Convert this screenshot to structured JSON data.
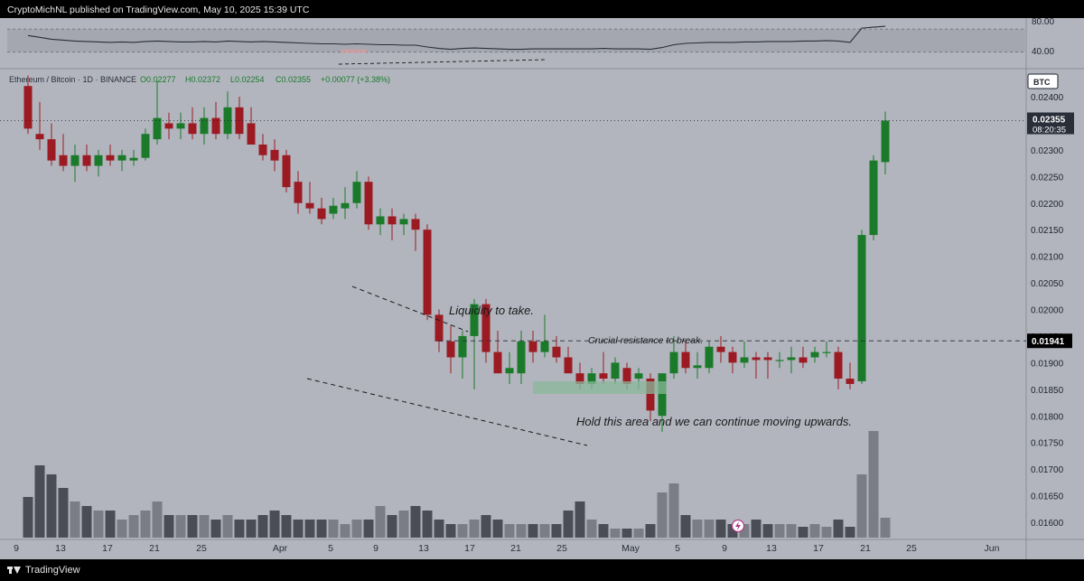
{
  "header": {
    "publisher_line": "CryptoMichNL published on TradingView.com, May 10, 2025 15:39 UTC"
  },
  "footer": {
    "brand": "TradingView"
  },
  "colors": {
    "up": "#1a7a2a",
    "down": "#9c1a22",
    "vol_up": "#7a7d85",
    "vol_down": "#4a4d55",
    "rsi_line": "#2a2e39",
    "annotation": "#1a1a1a"
  },
  "chart_data": {
    "type": "candlestick",
    "symbol_line": {
      "symbol": "Ethereum / Bitcoin · 1D · BINANCE",
      "open": "O0.02277",
      "high": "H0.02372",
      "low": "L0.02254",
      "close": "C0.02355",
      "change": "+0.00077 (+3.38%)"
    },
    "currency_badge": "BTC",
    "price_axis": {
      "ticks": [
        "0.02400",
        "0.02350",
        "0.02300",
        "0.02250",
        "0.02200",
        "0.02150",
        "0.02100",
        "0.02050",
        "0.02000",
        "0.01950",
        "0.01900",
        "0.01850",
        "0.01800",
        "0.01750",
        "0.01700",
        "0.01650",
        "0.01600"
      ],
      "range": [
        0.01575,
        0.02455
      ]
    },
    "time_axis": {
      "labels": [
        "9",
        "13",
        "17",
        "21",
        "25",
        "Apr",
        "5",
        "9",
        "13",
        "17",
        "21",
        "25",
        "May",
        "5",
        "9",
        "13",
        "17",
        "21",
        "25",
        "Jun"
      ]
    },
    "last_price": {
      "value": "0.02355",
      "countdown": "08:20:35"
    },
    "level_label": {
      "value": "0.01941"
    },
    "rsi_pane": {
      "ticks": [
        "80.00",
        "40.00"
      ],
      "band": [
        30,
        70
      ]
    },
    "annotations": {
      "liquidity": "Liquidity to take.",
      "resistance": "Crucial resistance to break.",
      "hold": "Hold this area and we can continue moving upwards."
    },
    "candles": [
      {
        "o": 0.0242,
        "h": 0.0244,
        "l": 0.0233,
        "c": 0.0234
      },
      {
        "o": 0.0233,
        "h": 0.0239,
        "l": 0.023,
        "c": 0.0232
      },
      {
        "o": 0.0232,
        "h": 0.0235,
        "l": 0.0227,
        "c": 0.0228
      },
      {
        "o": 0.0229,
        "h": 0.0233,
        "l": 0.0226,
        "c": 0.0227
      },
      {
        "o": 0.0227,
        "h": 0.0231,
        "l": 0.0224,
        "c": 0.0229
      },
      {
        "o": 0.0229,
        "h": 0.0231,
        "l": 0.0226,
        "c": 0.0227
      },
      {
        "o": 0.0227,
        "h": 0.023,
        "l": 0.0225,
        "c": 0.0229
      },
      {
        "o": 0.0229,
        "h": 0.0231,
        "l": 0.0227,
        "c": 0.0228
      },
      {
        "o": 0.0228,
        "h": 0.023,
        "l": 0.0226,
        "c": 0.0229
      },
      {
        "o": 0.0228,
        "h": 0.023,
        "l": 0.0227,
        "c": 0.02285
      },
      {
        "o": 0.02285,
        "h": 0.0234,
        "l": 0.0228,
        "c": 0.0233
      },
      {
        "o": 0.0232,
        "h": 0.0243,
        "l": 0.0231,
        "c": 0.0236
      },
      {
        "o": 0.0235,
        "h": 0.0237,
        "l": 0.0232,
        "c": 0.0234
      },
      {
        "o": 0.0234,
        "h": 0.0237,
        "l": 0.0232,
        "c": 0.0235
      },
      {
        "o": 0.0235,
        "h": 0.0238,
        "l": 0.0232,
        "c": 0.0233
      },
      {
        "o": 0.0233,
        "h": 0.0238,
        "l": 0.0231,
        "c": 0.0236
      },
      {
        "o": 0.0236,
        "h": 0.0239,
        "l": 0.0232,
        "c": 0.0233
      },
      {
        "o": 0.0233,
        "h": 0.0241,
        "l": 0.0232,
        "c": 0.0238
      },
      {
        "o": 0.0238,
        "h": 0.024,
        "l": 0.0232,
        "c": 0.0233
      },
      {
        "o": 0.0235,
        "h": 0.0238,
        "l": 0.0231,
        "c": 0.0231
      },
      {
        "o": 0.0231,
        "h": 0.0233,
        "l": 0.0228,
        "c": 0.0229
      },
      {
        "o": 0.023,
        "h": 0.0232,
        "l": 0.0226,
        "c": 0.0228
      },
      {
        "o": 0.0229,
        "h": 0.023,
        "l": 0.0222,
        "c": 0.0223
      },
      {
        "o": 0.0224,
        "h": 0.0226,
        "l": 0.0218,
        "c": 0.022
      },
      {
        "o": 0.022,
        "h": 0.0224,
        "l": 0.0218,
        "c": 0.0219
      },
      {
        "o": 0.0219,
        "h": 0.0221,
        "l": 0.0216,
        "c": 0.0217
      },
      {
        "o": 0.0218,
        "h": 0.0221,
        "l": 0.0217,
        "c": 0.02195
      },
      {
        "o": 0.0219,
        "h": 0.0223,
        "l": 0.0217,
        "c": 0.022
      },
      {
        "o": 0.022,
        "h": 0.0226,
        "l": 0.0219,
        "c": 0.0224
      },
      {
        "o": 0.0224,
        "h": 0.0225,
        "l": 0.0215,
        "c": 0.0216
      },
      {
        "o": 0.0216,
        "h": 0.0219,
        "l": 0.0214,
        "c": 0.02175
      },
      {
        "o": 0.02175,
        "h": 0.0219,
        "l": 0.0213,
        "c": 0.0216
      },
      {
        "o": 0.0216,
        "h": 0.0218,
        "l": 0.0214,
        "c": 0.0217
      },
      {
        "o": 0.0217,
        "h": 0.0218,
        "l": 0.0211,
        "c": 0.0215
      },
      {
        "o": 0.0215,
        "h": 0.0216,
        "l": 0.0198,
        "c": 0.0199
      },
      {
        "o": 0.0199,
        "h": 0.02,
        "l": 0.0192,
        "c": 0.0194
      },
      {
        "o": 0.0194,
        "h": 0.0197,
        "l": 0.0188,
        "c": 0.0191
      },
      {
        "o": 0.0191,
        "h": 0.0196,
        "l": 0.0187,
        "c": 0.0195
      },
      {
        "o": 0.0195,
        "h": 0.0202,
        "l": 0.0185,
        "c": 0.0201
      },
      {
        "o": 0.0201,
        "h": 0.0202,
        "l": 0.019,
        "c": 0.0192
      },
      {
        "o": 0.0192,
        "h": 0.0196,
        "l": 0.0188,
        "c": 0.0188
      },
      {
        "o": 0.0188,
        "h": 0.0192,
        "l": 0.0186,
        "c": 0.0189
      },
      {
        "o": 0.0188,
        "h": 0.0196,
        "l": 0.0186,
        "c": 0.0194
      },
      {
        "o": 0.0194,
        "h": 0.0196,
        "l": 0.019,
        "c": 0.0192
      },
      {
        "o": 0.0192,
        "h": 0.0199,
        "l": 0.0191,
        "c": 0.0194
      },
      {
        "o": 0.0193,
        "h": 0.0195,
        "l": 0.019,
        "c": 0.0191
      },
      {
        "o": 0.0191,
        "h": 0.0193,
        "l": 0.0188,
        "c": 0.0188
      },
      {
        "o": 0.0188,
        "h": 0.019,
        "l": 0.0185,
        "c": 0.0186
      },
      {
        "o": 0.0186,
        "h": 0.0189,
        "l": 0.0185,
        "c": 0.0188
      },
      {
        "o": 0.0188,
        "h": 0.0192,
        "l": 0.0186,
        "c": 0.0187
      },
      {
        "o": 0.0187,
        "h": 0.0191,
        "l": 0.0186,
        "c": 0.019
      },
      {
        "o": 0.0189,
        "h": 0.019,
        "l": 0.0185,
        "c": 0.0186
      },
      {
        "o": 0.0187,
        "h": 0.0189,
        "l": 0.0185,
        "c": 0.0188
      },
      {
        "o": 0.0187,
        "h": 0.0188,
        "l": 0.0179,
        "c": 0.0181
      },
      {
        "o": 0.018,
        "h": 0.0188,
        "l": 0.0177,
        "c": 0.0188
      },
      {
        "o": 0.0188,
        "h": 0.0195,
        "l": 0.0187,
        "c": 0.0192
      },
      {
        "o": 0.0192,
        "h": 0.0194,
        "l": 0.0188,
        "c": 0.0189
      },
      {
        "o": 0.0189,
        "h": 0.0192,
        "l": 0.0187,
        "c": 0.01895
      },
      {
        "o": 0.0189,
        "h": 0.0194,
        "l": 0.0188,
        "c": 0.0193
      },
      {
        "o": 0.0193,
        "h": 0.0195,
        "l": 0.019,
        "c": 0.0192
      },
      {
        "o": 0.0192,
        "h": 0.0193,
        "l": 0.0188,
        "c": 0.019
      },
      {
        "o": 0.019,
        "h": 0.0194,
        "l": 0.0189,
        "c": 0.0191
      },
      {
        "o": 0.0191,
        "h": 0.0192,
        "l": 0.0187,
        "c": 0.01905
      },
      {
        "o": 0.0191,
        "h": 0.0192,
        "l": 0.0187,
        "c": 0.01905
      },
      {
        "o": 0.01905,
        "h": 0.0192,
        "l": 0.0189,
        "c": 0.01905
      },
      {
        "o": 0.01905,
        "h": 0.0193,
        "l": 0.0188,
        "c": 0.0191
      },
      {
        "o": 0.0191,
        "h": 0.0193,
        "l": 0.0189,
        "c": 0.019
      },
      {
        "o": 0.0191,
        "h": 0.0193,
        "l": 0.019,
        "c": 0.0192
      },
      {
        "o": 0.0192,
        "h": 0.0194,
        "l": 0.0191,
        "c": 0.0192
      },
      {
        "o": 0.0192,
        "h": 0.0193,
        "l": 0.0185,
        "c": 0.0187
      },
      {
        "o": 0.0187,
        "h": 0.019,
        "l": 0.0185,
        "c": 0.0186
      },
      {
        "o": 0.01865,
        "h": 0.0215,
        "l": 0.0186,
        "c": 0.0214
      },
      {
        "o": 0.0214,
        "h": 0.0229,
        "l": 0.0213,
        "c": 0.0228
      },
      {
        "o": 0.02277,
        "h": 0.02372,
        "l": 0.02254,
        "c": 0.02355
      }
    ],
    "volume": [
      45,
      80,
      70,
      55,
      40,
      35,
      30,
      30,
      20,
      25,
      30,
      40,
      25,
      25,
      25,
      25,
      20,
      25,
      20,
      20,
      25,
      30,
      25,
      20,
      20,
      20,
      20,
      15,
      20,
      20,
      35,
      25,
      30,
      35,
      30,
      20,
      15,
      15,
      20,
      25,
      20,
      15,
      15,
      15,
      15,
      15,
      30,
      40,
      20,
      15,
      10,
      10,
      10,
      15,
      50,
      60,
      25,
      20,
      20,
      20,
      15,
      15,
      20,
      15,
      15,
      15,
      12,
      15,
      12,
      20,
      12,
      70,
      118,
      22
    ],
    "rsi": [
      70,
      66,
      62,
      60,
      58,
      57,
      56,
      55,
      56,
      55,
      57,
      58,
      57,
      56,
      56,
      57,
      56,
      58,
      57,
      56,
      57,
      56,
      55,
      54,
      53,
      52,
      52,
      51,
      52,
      51,
      50,
      50,
      49,
      49,
      45,
      42,
      40,
      42,
      43,
      42,
      41,
      40,
      40,
      41,
      41,
      41,
      41,
      41,
      41,
      42,
      41,
      41,
      41,
      40,
      44,
      50,
      53,
      54,
      55,
      55,
      55,
      56,
      56,
      57,
      57,
      57,
      58,
      58,
      59,
      58,
      55,
      86,
      88,
      90
    ]
  }
}
